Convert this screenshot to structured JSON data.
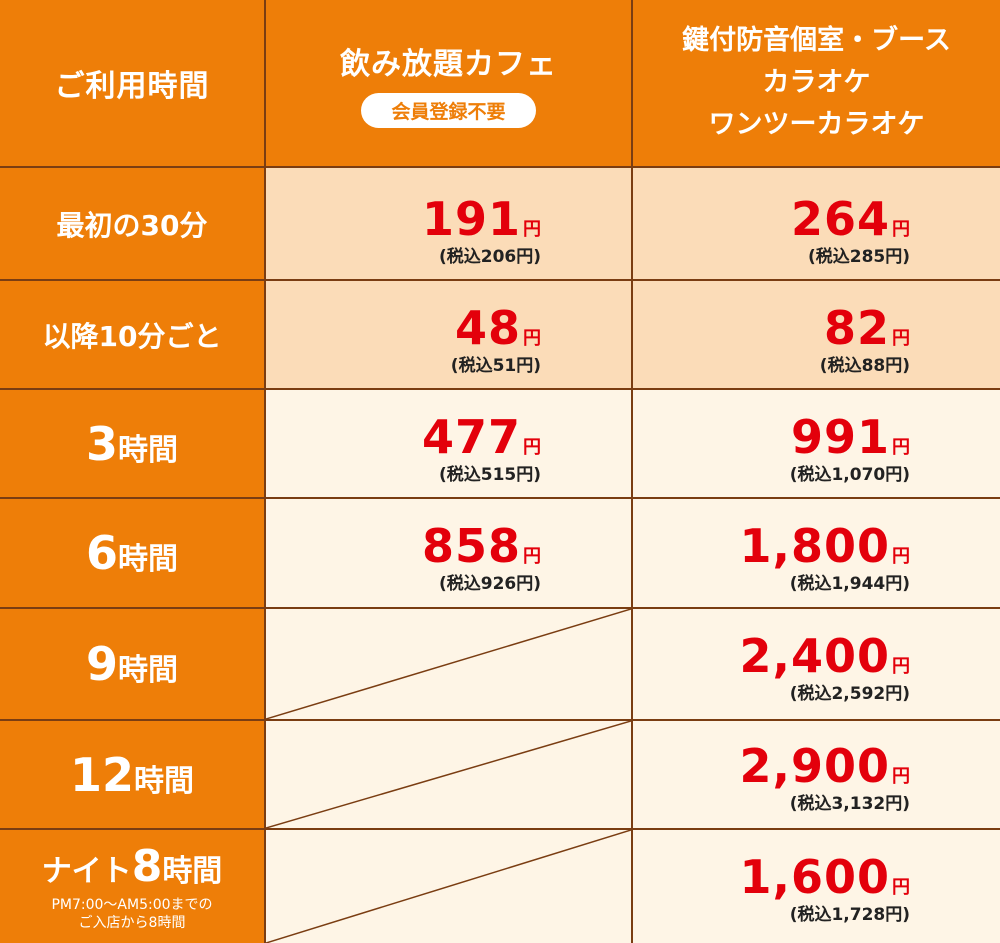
{
  "header": {
    "time_label": "ご利用時間",
    "cafe": {
      "title": "飲み放題カフェ",
      "badge": "会員登録不要"
    },
    "karaoke": {
      "lines": [
        "鍵付防音個室・ブース",
        "カラオケ",
        "ワンツーカラオケ"
      ]
    }
  },
  "yen_suffix": "円",
  "rows": [
    {
      "label": "最初の30分",
      "cafe": {
        "price": "191",
        "tax": "(税込206円)"
      },
      "karaoke": {
        "price": "264",
        "tax": "(税込285円)"
      }
    },
    {
      "label": "以降10分ごと",
      "cafe": {
        "price": "48",
        "tax": "(税込51円)"
      },
      "karaoke": {
        "price": "82",
        "tax": "(税込88円)"
      }
    },
    {
      "label_num": "3",
      "label_suffix": "時間",
      "cafe": {
        "price": "477",
        "tax": "(税込515円)"
      },
      "karaoke": {
        "price": "991",
        "tax": "(税込1,070円)"
      }
    },
    {
      "label_num": "6",
      "label_suffix": "時間",
      "cafe": {
        "price": "858",
        "tax": "(税込926円)"
      },
      "karaoke": {
        "price": "1,800",
        "tax": "(税込1,944円)"
      }
    },
    {
      "label_num": "9",
      "label_suffix": "時間",
      "cafe": null,
      "karaoke": {
        "price": "2,400",
        "tax": "(税込2,592円)"
      }
    },
    {
      "label_num": "12",
      "label_suffix": "時間",
      "cafe": null,
      "karaoke": {
        "price": "2,900",
        "tax": "(税込3,132円)"
      }
    },
    {
      "label_prefix": "ナイト",
      "label_num": "8",
      "label_suffix": "時間",
      "label_note": [
        "PM7:00～AM5:00までの",
        "ご入店から8時間"
      ],
      "cafe": null,
      "karaoke": {
        "price": "1,600",
        "tax": "(税込1,728円)"
      }
    }
  ],
  "colors": {
    "orange": "#ee7e08",
    "peach": "#fbdcb8",
    "cream": "#fef5e6",
    "border": "#7a3d12",
    "price_red": "#e3000b"
  }
}
